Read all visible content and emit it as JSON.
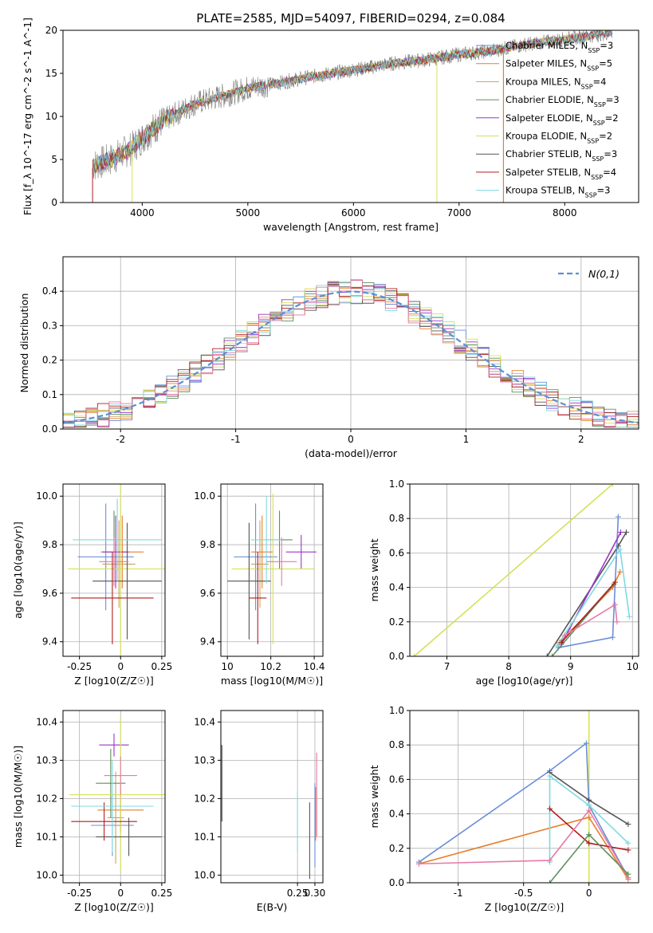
{
  "figure": {
    "title": "PLATE=2585, MJD=54097, FIBERID=0294, z=0.084"
  },
  "colors": {
    "Chabrier MILES": "#6a8fd8",
    "Salpeter MILES": "#e87e2b",
    "Kroupa MILES": "#c8a25a",
    "Chabrier ELODIE": "#5e8f5e",
    "Salpeter ELODIE": "#9b35c5",
    "Kroupa ELODIE": "#d6e05a",
    "Chabrier STELIB": "#555555",
    "Salpeter STELIB": "#b01e1e",
    "Kroupa STELIB": "#7fd9e0",
    "pink": "#e87aa8",
    "data": "#808080",
    "normal": "#5b8fd6"
  },
  "chart_data": [
    {
      "id": "spectrum",
      "type": "line",
      "xlabel": "wavelength [Angstrom, rest frame]",
      "ylabel": "Flux [f_λ 10^-17 erg cm^-2 s^-1 A^-1]",
      "xlim": [
        3250,
        8700
      ],
      "ylim": [
        0,
        20
      ],
      "xticks": [
        4000,
        5000,
        6000,
        7000,
        8000
      ],
      "yticks": [
        0,
        5,
        10,
        15,
        20
      ],
      "grid": false,
      "legend_position": "right",
      "legend": [
        {
          "label": "Chabrier MILES, N_SSP=3",
          "color_key": "Chabrier MILES"
        },
        {
          "label": "Salpeter MILES, N_SSP=5",
          "color_key": "Salpeter MILES"
        },
        {
          "label": "Kroupa MILES, N_SSP=4",
          "color_key": "Kroupa MILES"
        },
        {
          "label": "Chabrier ELODIE, N_SSP=3",
          "color_key": "Chabrier ELODIE"
        },
        {
          "label": "Salpeter ELODIE, N_SSP=2",
          "color_key": "Salpeter ELODIE"
        },
        {
          "label": "Kroupa ELODIE, N_SSP=2",
          "color_key": "Kroupa ELODIE"
        },
        {
          "label": "Chabrier STELIB, N_SSP=3",
          "color_key": "Chabrier STELIB"
        },
        {
          "label": "Salpeter STELIB, N_SSP=4",
          "color_key": "Salpeter STELIB"
        },
        {
          "label": "Kroupa STELIB, N_SSP=3",
          "color_key": "Kroupa STELIB"
        }
      ],
      "continuum": {
        "x": [
          3530,
          3700,
          3900,
          4000,
          4200,
          4500,
          4800,
          5000,
          5300,
          5600,
          5900,
          6100,
          6400,
          6700,
          7000,
          7300,
          7600,
          7900,
          8200,
          8450
        ],
        "y": [
          4.3,
          5.0,
          6.3,
          7.5,
          9.5,
          11.5,
          12.5,
          13.3,
          13.9,
          14.6,
          15.2,
          15.6,
          16.2,
          16.6,
          17.2,
          17.6,
          18.3,
          18.8,
          19.3,
          19.8
        ]
      },
      "red_cutoffs": [
        3530,
        7430
      ],
      "flat_fit_segment": [
        3530,
        3590
      ]
    },
    {
      "id": "residuals",
      "type": "histogram",
      "xlabel": "(data-model)/error",
      "ylabel": "Normed distribution",
      "xlim": [
        -2.5,
        2.5
      ],
      "ylim": [
        0,
        0.5
      ],
      "xticks": [
        -2,
        -1,
        0,
        1,
        2
      ],
      "yticks": [
        0.0,
        0.1,
        0.2,
        0.3,
        0.4
      ],
      "grid": true,
      "legend_position": "top-right",
      "legend_label": "N(0,1)",
      "bin_width": 0.1,
      "bin_start": -2.5
    },
    {
      "id": "age-vs-Z",
      "type": "errorbar",
      "xlabel": "Z [log10(Z/Z☉)]",
      "ylabel": "age  [log10(age/yr)]",
      "xlim": [
        -0.35,
        0.27
      ],
      "ylim": [
        9.34,
        10.05
      ],
      "xticks": [
        -0.25,
        0.0,
        0.25
      ],
      "yticks": [
        9.4,
        9.6,
        9.8,
        10.0
      ],
      "grid": true,
      "points": [
        {
          "color_key": "Chabrier MILES",
          "x": -0.09,
          "y": 9.75,
          "xerr": 0.17,
          "yerr": 0.22
        },
        {
          "color_key": "Salpeter MILES",
          "x": 0.01,
          "y": 9.77,
          "xerr": 0.13,
          "yerr": 0.15
        },
        {
          "color_key": "Kroupa MILES",
          "x": -0.01,
          "y": 9.72,
          "xerr": 0.1,
          "yerr": 0.18
        },
        {
          "color_key": "Chabrier ELODIE",
          "x": -0.04,
          "y": 9.82,
          "xerr": 0.07,
          "yerr": 0.12
        },
        {
          "color_key": "Salpeter ELODIE",
          "x": -0.03,
          "y": 9.77,
          "xerr": 0.08,
          "yerr": 0.15
        },
        {
          "color_key": "Kroupa ELODIE",
          "x": 0.0,
          "y": 9.7,
          "xerr": 0.32,
          "yerr": 0.4
        },
        {
          "color_key": "Chabrier STELIB",
          "x": 0.04,
          "y": 9.65,
          "xerr": 0.21,
          "yerr": 0.24
        },
        {
          "color_key": "Salpeter STELIB",
          "x": -0.05,
          "y": 9.58,
          "xerr": 0.25,
          "yerr": 0.19
        },
        {
          "color_key": "Kroupa STELIB",
          "x": -0.02,
          "y": 9.82,
          "xerr": 0.27,
          "yerr": 0.17
        },
        {
          "color_key": "pink",
          "x": -0.04,
          "y": 9.73,
          "xerr": 0.09,
          "yerr": 0.1
        }
      ]
    },
    {
      "id": "age-vs-mass",
      "type": "errorbar",
      "xlabel": "mass [log10(M/M☉)]",
      "xlim": [
        9.97,
        10.44
      ],
      "ylim": [
        9.34,
        10.05
      ],
      "xticks": [
        10.0,
        10.2,
        10.4
      ],
      "yticks": [
        9.4,
        9.6,
        9.8,
        10.0
      ],
      "grid": true,
      "points": [
        {
          "color_key": "Chabrier MILES",
          "x": 10.13,
          "y": 9.75,
          "xerr": 0.1,
          "yerr": 0.22
        },
        {
          "color_key": "Salpeter MILES",
          "x": 10.16,
          "y": 9.77,
          "xerr": 0.05,
          "yerr": 0.15
        },
        {
          "color_key": "Kroupa MILES",
          "x": 10.15,
          "y": 9.72,
          "xerr": 0.04,
          "yerr": 0.18
        },
        {
          "color_key": "Chabrier ELODIE",
          "x": 10.24,
          "y": 9.82,
          "xerr": 0.06,
          "yerr": 0.12
        },
        {
          "color_key": "Salpeter ELODIE",
          "x": 10.34,
          "y": 9.77,
          "xerr": 0.07,
          "yerr": 0.07
        },
        {
          "color_key": "Kroupa ELODIE",
          "x": 10.21,
          "y": 9.7,
          "xerr": 0.19,
          "yerr": 0.31
        },
        {
          "color_key": "Chabrier STELIB",
          "x": 10.1,
          "y": 9.65,
          "xerr": 0.1,
          "yerr": 0.24
        },
        {
          "color_key": "Salpeter STELIB",
          "x": 10.14,
          "y": 9.58,
          "xerr": 0.04,
          "yerr": 0.19
        },
        {
          "color_key": "Kroupa STELIB",
          "x": 10.18,
          "y": 9.82,
          "xerr": 0.07,
          "yerr": 0.18
        },
        {
          "color_key": "pink",
          "x": 10.25,
          "y": 9.73,
          "xerr": 0.07,
          "yerr": 0.1
        }
      ]
    },
    {
      "id": "weight-vs-age",
      "type": "line",
      "xlabel": "age  [log10(age/yr)]",
      "ylabel": "mass weight",
      "xlim": [
        6.4,
        10.1
      ],
      "ylim": [
        0.0,
        1.0
      ],
      "xticks": [
        7,
        8,
        9,
        10
      ],
      "yticks": [
        0.0,
        0.2,
        0.4,
        0.6,
        0.8,
        1.0
      ],
      "grid": true,
      "series": [
        {
          "color_key": "Kroupa ELODIE",
          "x": [
            6.47,
            9.68
          ],
          "y": [
            0.0,
            1.0
          ]
        },
        {
          "color_key": "Chabrier STELIB",
          "x": [
            8.62,
            9.77,
            9.9
          ],
          "y": [
            0.0,
            0.64,
            0.72
          ]
        },
        {
          "color_key": "Chabrier MILES",
          "x": [
            8.8,
            9.68,
            9.77
          ],
          "y": [
            0.05,
            0.11,
            0.81
          ]
        },
        {
          "color_key": "Salpeter MILES",
          "x": [
            8.82,
            9.68,
            9.8
          ],
          "y": [
            0.08,
            0.4,
            0.49
          ]
        },
        {
          "color_key": "Salpeter ELODIE",
          "x": [
            8.85,
            9.81
          ],
          "y": [
            0.07,
            0.72
          ]
        },
        {
          "color_key": "Kroupa STELIB",
          "x": [
            8.78,
            9.8,
            9.95
          ],
          "y": [
            0.06,
            0.62,
            0.23
          ]
        },
        {
          "color_key": "Chabrier ELODIE",
          "x": [
            8.7,
            9.7
          ],
          "y": [
            0.0,
            0.42
          ]
        },
        {
          "color_key": "Salpeter STELIB",
          "x": [
            8.85,
            9.72
          ],
          "y": [
            0.08,
            0.43
          ]
        },
        {
          "color_key": "pink",
          "x": [
            8.9,
            9.72,
            9.75
          ],
          "y": [
            0.12,
            0.3,
            0.2
          ]
        }
      ]
    },
    {
      "id": "mass-vs-Z",
      "type": "errorbar",
      "xlabel": "Z [log10(Z/Z☉)]",
      "ylabel": "mass [log10(M/M☉)]",
      "xlim": [
        -0.35,
        0.27
      ],
      "ylim": [
        9.98,
        10.43
      ],
      "xticks": [
        -0.25,
        0.0,
        0.25
      ],
      "yticks": [
        10.0,
        10.1,
        10.2,
        10.3,
        10.4
      ],
      "grid": true,
      "points": [
        {
          "color_key": "Chabrier MILES",
          "x": -0.05,
          "y": 10.13,
          "xerr": 0.13,
          "yerr": 0.08
        },
        {
          "color_key": "Salpeter MILES",
          "x": 0.0,
          "y": 10.17,
          "xerr": 0.14,
          "yerr": 0.06
        },
        {
          "color_key": "Kroupa MILES",
          "x": -0.03,
          "y": 10.15,
          "xerr": 0.05,
          "yerr": 0.12
        },
        {
          "color_key": "Chabrier ELODIE",
          "x": -0.06,
          "y": 10.24,
          "xerr": 0.09,
          "yerr": 0.09
        },
        {
          "color_key": "Salpeter ELODIE",
          "x": -0.04,
          "y": 10.34,
          "xerr": 0.09,
          "yerr": 0.03
        },
        {
          "color_key": "Kroupa ELODIE",
          "x": 0.0,
          "y": 10.21,
          "xerr": 0.31,
          "yerr": 0.2
        },
        {
          "color_key": "Chabrier STELIB",
          "x": 0.05,
          "y": 10.1,
          "xerr": 0.2,
          "yerr": 0.05
        },
        {
          "color_key": "Salpeter STELIB",
          "x": -0.1,
          "y": 10.14,
          "xerr": 0.2,
          "yerr": 0.05
        },
        {
          "color_key": "Kroupa STELIB",
          "x": -0.05,
          "y": 10.18,
          "xerr": 0.25,
          "yerr": 0.12
        },
        {
          "color_key": "pink",
          "x": 0.0,
          "y": 10.26,
          "xerr": 0.1,
          "yerr": 0.05
        }
      ]
    },
    {
      "id": "mass-vs-ebv",
      "type": "errorbar",
      "xlabel": "E(B-V)",
      "xlim": [
        0.03,
        0.323
      ],
      "ylim": [
        9.98,
        10.43
      ],
      "xticks": [
        0.25,
        0.3
      ],
      "xtick_labels": [
        "0.25",
        "0.30"
      ],
      "yticks": [
        10.0,
        10.1,
        10.2,
        10.3,
        10.4
      ],
      "grid": true,
      "points": [
        {
          "color_key": "Kroupa ELODIE",
          "x": 0.03,
          "y": 10.21,
          "xerr": 0,
          "yerr": 0.2
        },
        {
          "color_key": "Chabrier STELIB",
          "x": 0.033,
          "y": 10.24,
          "xerr": 0,
          "yerr": 0.1
        },
        {
          "color_key": "Kroupa STELIB",
          "x": 0.25,
          "y": 10.14,
          "xerr": 0,
          "yerr": 0.08
        },
        {
          "color_key": "Chabrier STELIB",
          "x": 0.285,
          "y": 10.09,
          "xerr": 0,
          "yerr": 0.1
        },
        {
          "color_key": "Chabrier MILES",
          "x": 0.3,
          "y": 10.13,
          "xerr": 0,
          "yerr": 0.11
        },
        {
          "color_key": "Salpeter MILES",
          "x": 0.302,
          "y": 10.16,
          "xerr": 0,
          "yerr": 0.07
        },
        {
          "color_key": "pink",
          "x": 0.305,
          "y": 10.21,
          "xerr": 0,
          "yerr": 0.11
        }
      ]
    },
    {
      "id": "weight-vs-Z",
      "type": "line",
      "xlabel": "Z [log10(Z/Z☉)]",
      "ylabel": "mass weight",
      "xlim": [
        -1.37,
        0.38
      ],
      "ylim": [
        0.0,
        1.0
      ],
      "xticks": [
        -1.0,
        -0.5,
        0.0
      ],
      "yticks": [
        0.0,
        0.2,
        0.4,
        0.6,
        0.8,
        1.0
      ],
      "grid": true,
      "series": [
        {
          "color_key": "Kroupa ELODIE",
          "x": [
            0.0,
            0.0
          ],
          "y": [
            0.0,
            1.0
          ]
        },
        {
          "color_key": "Chabrier MILES",
          "x": [
            -1.3,
            -0.3,
            -0.02,
            0.0,
            0.3
          ],
          "y": [
            0.12,
            0.65,
            0.81,
            0.45,
            0.03
          ]
        },
        {
          "color_key": "Salpeter MILES",
          "x": [
            -1.3,
            0.0,
            0.3
          ],
          "y": [
            0.11,
            0.38,
            0.02
          ]
        },
        {
          "color_key": "Chabrier STELIB",
          "x": [
            -0.3,
            0.0,
            0.3
          ],
          "y": [
            0.64,
            0.48,
            0.34
          ]
        },
        {
          "color_key": "Kroupa STELIB",
          "x": [
            -0.3,
            -0.3,
            0.0,
            0.3
          ],
          "y": [
            0.12,
            0.62,
            0.45,
            0.23
          ]
        },
        {
          "color_key": "Salpeter STELIB",
          "x": [
            -0.3,
            0.0,
            0.3
          ],
          "y": [
            0.43,
            0.23,
            0.19
          ]
        },
        {
          "color_key": "pink",
          "x": [
            -1.3,
            -0.3,
            0.0,
            0.3
          ],
          "y": [
            0.11,
            0.13,
            0.42,
            0.03
          ]
        },
        {
          "color_key": "Chabrier ELODIE",
          "x": [
            -0.3,
            0.0,
            0.3
          ],
          "y": [
            0.0,
            0.28,
            0.05
          ]
        }
      ]
    }
  ]
}
